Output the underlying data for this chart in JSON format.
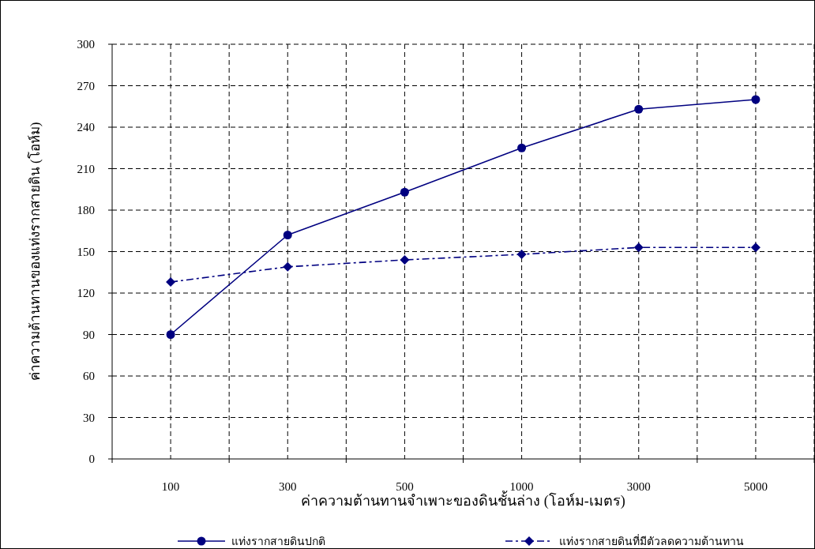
{
  "chart_data": {
    "type": "line",
    "xlabel": "ค่าความต้านทานจำเพาะของดินชั้นล่าง (โอห์ม-เมตร)",
    "ylabel": "ค่าความต้านทานของแท่งรากสายดิน (โอห์ม)",
    "categories": [
      "100",
      "300",
      "500",
      "1000",
      "3000",
      "5000"
    ],
    "series": [
      {
        "name": "แท่งรากสายดินปกติ",
        "color": "#000080",
        "marker": "circle",
        "line_style": "solid",
        "values": [
          90,
          162,
          193,
          225,
          253,
          260
        ]
      },
      {
        "name": "แท่งรากสายดินที่มีตัวลดความต้านทาน",
        "color": "#000080",
        "marker": "diamond",
        "line_style": "dashed",
        "values": [
          128,
          139,
          144,
          148,
          153,
          153
        ]
      }
    ],
    "ylim": [
      0,
      300
    ],
    "yticks": [
      0,
      30,
      60,
      90,
      120,
      150,
      180,
      210,
      240,
      270,
      300
    ],
    "grid": true,
    "legend": "bottom"
  }
}
